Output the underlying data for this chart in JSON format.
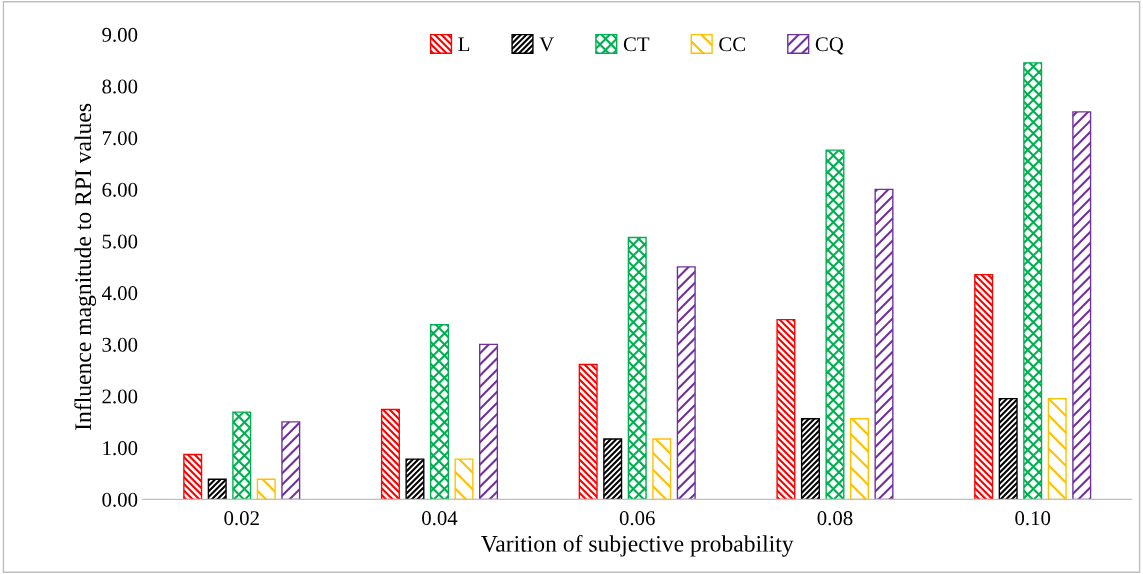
{
  "chart_data": {
    "type": "bar",
    "xlabel": "Varition of subjective probability",
    "ylabel": "Influence magnitude to RPI values",
    "categories": [
      "0.02",
      "0.04",
      "0.06",
      "0.08",
      "0.10"
    ],
    "series": [
      {
        "name": "L",
        "color": "#ff0000",
        "values": [
          0.87,
          1.74,
          2.61,
          3.48,
          4.35
        ]
      },
      {
        "name": "V",
        "color": "#000000",
        "values": [
          0.39,
          0.78,
          1.17,
          1.56,
          1.95
        ]
      },
      {
        "name": "CT",
        "color": "#00b050",
        "values": [
          1.69,
          3.38,
          5.07,
          6.76,
          8.45
        ]
      },
      {
        "name": "CC",
        "color": "#ffc000",
        "values": [
          0.39,
          0.78,
          1.17,
          1.56,
          1.95
        ]
      },
      {
        "name": "CQ",
        "color": "#7030a0",
        "values": [
          1.5,
          3.0,
          4.5,
          6.0,
          7.5
        ]
      }
    ],
    "ylim": [
      0,
      9
    ],
    "yticks": [
      {
        "value": 0,
        "label": "0.00"
      },
      {
        "value": 1,
        "label": "1.00"
      },
      {
        "value": 2,
        "label": "2.00"
      },
      {
        "value": 3,
        "label": "3.00"
      },
      {
        "value": 4,
        "label": "4.00"
      },
      {
        "value": 5,
        "label": "5.00"
      },
      {
        "value": 6,
        "label": "6.00"
      },
      {
        "value": 7,
        "label": "7.00"
      },
      {
        "value": 8,
        "label": "8.00"
      },
      {
        "value": 9,
        "label": "9.00"
      }
    ],
    "grid": false,
    "legend": "top"
  }
}
